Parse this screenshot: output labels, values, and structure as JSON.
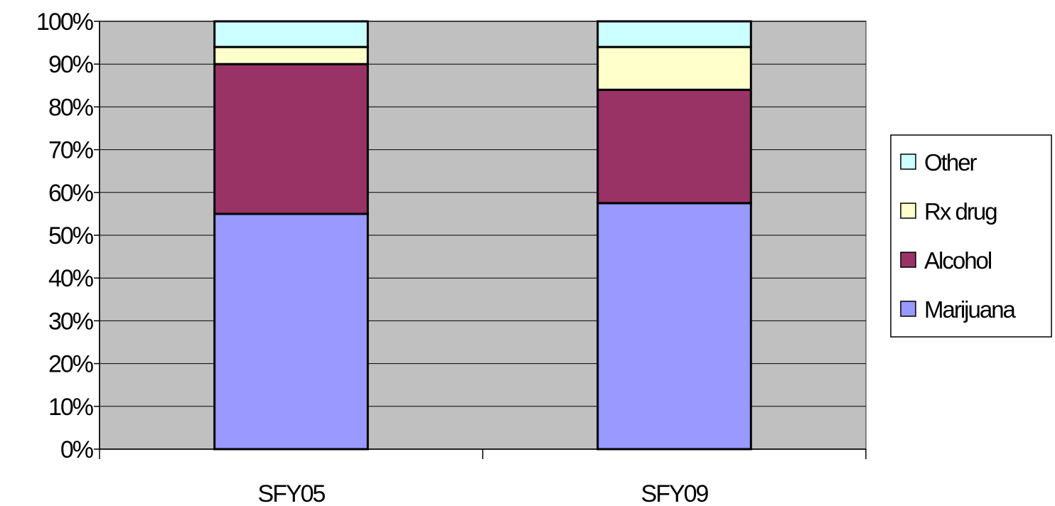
{
  "chart_data": {
    "type": "bar",
    "stacked": true,
    "percent_stacked": true,
    "categories": [
      "SFY05",
      "SFY09"
    ],
    "series": [
      {
        "name": "Marijuana",
        "values": [
          55,
          57.5
        ],
        "color": "#9999FF"
      },
      {
        "name": "Alcohol",
        "values": [
          35,
          26.5
        ],
        "color": "#993366"
      },
      {
        "name": "Rx drug",
        "values": [
          4,
          10
        ],
        "color": "#FFFFCC"
      },
      {
        "name": "Other",
        "values": [
          6,
          6
        ],
        "color": "#CCFFFF"
      }
    ],
    "ylim": [
      0,
      100
    ],
    "y_ticks": [
      "0%",
      "10%",
      "20%",
      "30%",
      "40%",
      "50%",
      "60%",
      "70%",
      "80%",
      "90%",
      "100%"
    ],
    "grid": true,
    "plot_background": "#C0C0C0",
    "legend": {
      "position": "right",
      "order": [
        "Other",
        "Rx drug",
        "Alcohol",
        "Marijuana"
      ]
    }
  }
}
